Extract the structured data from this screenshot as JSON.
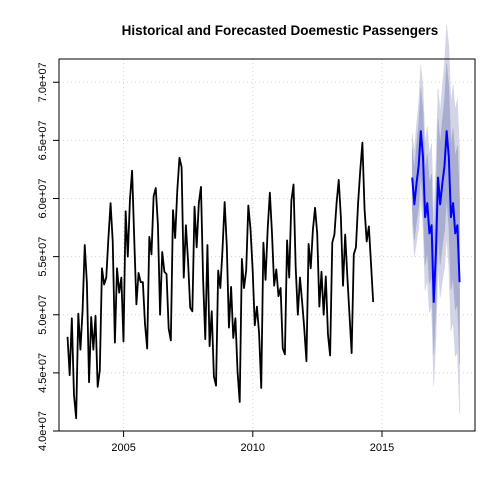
{
  "chart_data": {
    "type": "line",
    "title": "Historical and Forecasted Doemestic Passengers",
    "xlabel": "",
    "ylabel": "",
    "xlim": [
      2002.5,
      2018.6
    ],
    "ylim": [
      40000000,
      72000000
    ],
    "x_ticks": [
      2005,
      2010,
      2015
    ],
    "x_tick_labels": [
      "2005",
      "2010",
      "2015"
    ],
    "y_ticks": [
      40000000,
      45000000,
      50000000,
      55000000,
      60000000,
      65000000,
      70000000
    ],
    "y_tick_labels": [
      "4.0e+07",
      "4.5e+07",
      "5.0e+07",
      "5.5e+07",
      "6.0e+07",
      "6.5e+07",
      "7.0e+07"
    ],
    "grid": true,
    "colors": {
      "historical": "#000000",
      "forecast": "#0000ff",
      "band_outer": "#d3d5e6",
      "band_inner": "#a9adcf",
      "grid": "#d3d3d3"
    },
    "series": [
      {
        "role": "historical",
        "x_start": 2002.83,
        "step": 0.0833,
        "values": [
          48.1,
          44.8,
          49.7,
          43.1,
          41.1,
          50.1,
          47.0,
          50.4,
          56.0,
          52.7,
          44.2,
          49.8,
          47.0,
          49.9,
          43.8,
          45.2,
          54.0,
          52.6,
          53.2,
          56.6,
          59.6,
          56.3,
          47.6,
          54.0,
          51.9,
          53.2,
          47.7,
          58.9,
          55.0,
          59.9,
          62.4,
          56.5,
          50.9,
          53.6,
          52.8,
          52.8,
          49.2,
          47.1,
          56.7,
          55.2,
          60.2,
          60.9,
          57.7,
          50.0,
          55.4,
          53.7,
          53.5,
          48.8,
          47.8,
          59.0,
          56.6,
          60.7,
          63.5,
          62.7,
          53.2,
          57.7,
          54.6,
          50.6,
          50.3,
          59.3,
          55.8,
          59.6,
          61.0,
          53.0,
          47.9,
          56.0,
          47.3,
          50.3,
          44.7,
          43.9,
          53.8,
          52.3,
          55.6,
          59.7,
          55.9,
          48.9,
          52.4,
          48.0,
          49.7,
          45.1,
          42.5,
          54.8,
          52.3,
          53.8,
          59.4,
          57.4,
          53.9,
          49.1,
          50.7,
          48.4,
          43.7,
          56.2,
          53.0,
          57.4,
          60.5,
          57.0,
          52.5,
          53.9,
          51.6,
          52.3,
          47.1,
          46.6,
          56.4,
          53.2,
          59.8,
          61.2,
          54.1,
          50.0,
          53.2,
          51.1,
          48.8,
          46.0,
          56.1,
          54.0,
          57.3,
          59.2,
          57.0,
          50.7,
          53.7,
          50.0,
          53.3,
          48.3,
          46.5,
          56.2,
          56.9,
          59.6,
          61.6,
          58.4,
          52.5,
          56.9,
          53.3,
          50.0,
          46.7,
          55.2,
          55.8,
          59.6,
          62.4,
          64.8,
          59.1,
          56.3,
          57.6,
          54.4,
          51.1
        ]
      },
      {
        "role": "forecast",
        "x_start": 2016.17,
        "step": 0.0833,
        "values": [
          61.8,
          59.5,
          61.3,
          62.8,
          65.8,
          63.6,
          58.4,
          59.6,
          57.0,
          57.7,
          51.1,
          55.3,
          61.8,
          59.5,
          61.3,
          62.8,
          65.8,
          63.6,
          58.4,
          59.6,
          57.0,
          57.7,
          52.8
        ],
        "band_80": [
          [
            59.3,
            64.3
          ],
          [
            56.5,
            62.5
          ],
          [
            58.0,
            64.6
          ],
          [
            59.3,
            66.3
          ],
          [
            62.1,
            69.5
          ],
          [
            59.7,
            67.5
          ],
          [
            54.3,
            62.5
          ],
          [
            55.4,
            63.8
          ],
          [
            52.7,
            61.3
          ],
          [
            53.3,
            62.1
          ],
          [
            46.6,
            55.6
          ],
          [
            50.6,
            60.0
          ],
          [
            56.8,
            66.8
          ],
          [
            54.3,
            64.7
          ],
          [
            55.9,
            66.7
          ],
          [
            57.2,
            68.4
          ],
          [
            60.0,
            71.6
          ],
          [
            57.6,
            69.6
          ],
          [
            52.2,
            64.6
          ],
          [
            53.2,
            66.0
          ],
          [
            50.4,
            63.6
          ],
          [
            50.9,
            64.5
          ],
          [
            45.8,
            59.8
          ]
        ],
        "band_95": [
          [
            58.0,
            65.6
          ],
          [
            55.0,
            64.0
          ],
          [
            56.3,
            66.3
          ],
          [
            57.4,
            68.2
          ],
          [
            60.1,
            71.5
          ],
          [
            57.6,
            69.6
          ],
          [
            52.1,
            64.7
          ],
          [
            53.0,
            66.2
          ],
          [
            50.2,
            63.8
          ],
          [
            50.7,
            64.7
          ],
          [
            43.9,
            58.3
          ],
          [
            47.8,
            62.8
          ],
          [
            54.2,
            69.4
          ],
          [
            51.5,
            67.5
          ],
          [
            52.9,
            69.7
          ],
          [
            54.0,
            71.6
          ],
          [
            56.7,
            74.9
          ],
          [
            54.1,
            73.1
          ],
          [
            48.6,
            68.2
          ],
          [
            49.4,
            69.8
          ],
          [
            46.4,
            67.6
          ],
          [
            46.8,
            68.6
          ],
          [
            41.5,
            64.1
          ]
        ]
      }
    ],
    "value_unit_multiplier": 1000000
  }
}
